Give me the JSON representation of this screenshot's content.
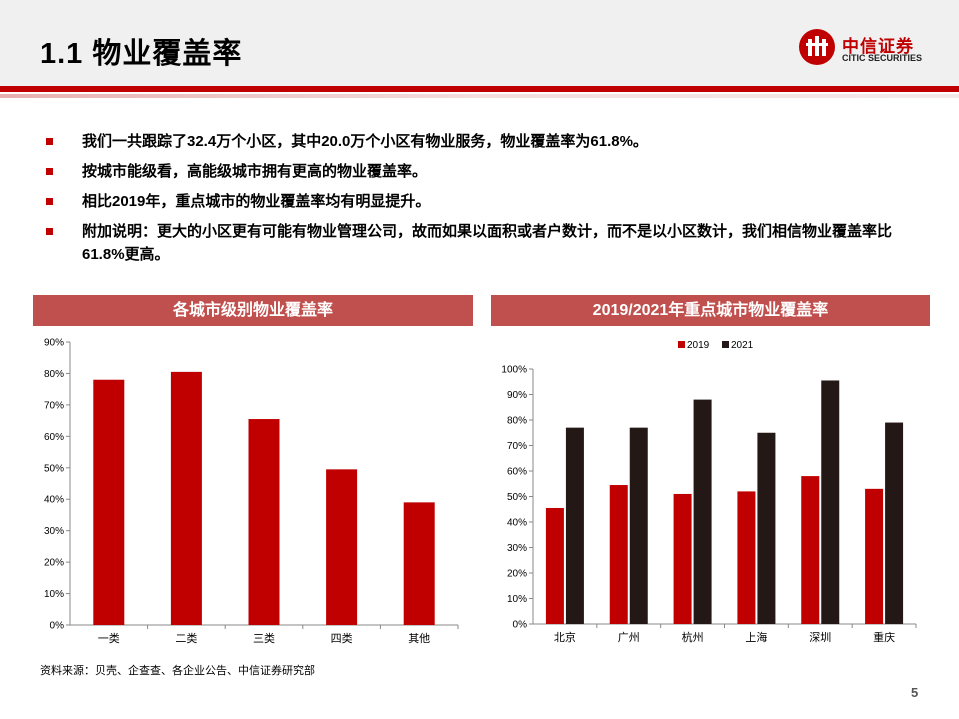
{
  "header": {
    "title": "1.1 物业覆盖率"
  },
  "logo": {
    "cn": "中信证券",
    "en": "CITIC SECURITIES"
  },
  "bullets": [
    "我们一共跟踪了32.4万个小区，其中20.0万个小区有物业服务，物业覆盖率为61.8%。",
    "按城市能级看，高能级城市拥有更高的物业覆盖率。",
    "相比2019年，重点城市的物业覆盖率均有明显提升。",
    "附加说明：更大的小区更有可能有物业管理公司，故而如果以面积或者户数计，而不是以小区数计，我们相信物业覆盖率比61.8%更高。"
  ],
  "colors": {
    "brand_red": "#c00000",
    "panel_header": "#c0504d",
    "bar_2021": "#231815",
    "bar_red": "#c00000"
  },
  "chart_data": [
    {
      "type": "bar",
      "title": "各城市级别物业覆盖率",
      "categories": [
        "一类",
        "二类",
        "三类",
        "四类",
        "其他"
      ],
      "values": [
        78,
        80.5,
        65.5,
        49.5,
        39
      ],
      "ylim": [
        0,
        90
      ],
      "yticks": [
        "0%",
        "10%",
        "20%",
        "30%",
        "40%",
        "50%",
        "60%",
        "70%",
        "80%",
        "90%"
      ],
      "grid": false
    },
    {
      "type": "bar",
      "title": "2019/2021年重点城市物业覆盖率",
      "categories": [
        "北京",
        "广州",
        "杭州",
        "上海",
        "深圳",
        "重庆"
      ],
      "series": [
        {
          "name": "2019",
          "values": [
            45.5,
            54.5,
            51,
            52,
            58,
            53
          ]
        },
        {
          "name": "2021",
          "values": [
            77,
            77,
            88,
            75,
            95.5,
            79
          ]
        }
      ],
      "ylim": [
        0,
        100
      ],
      "yticks": [
        "0%",
        "10%",
        "20%",
        "30%",
        "40%",
        "50%",
        "60%",
        "70%",
        "80%",
        "90%",
        "100%"
      ],
      "legend": "top-left",
      "grid": false
    }
  ],
  "footer": {
    "source": "资料来源：贝壳、企查查、各企业公告、中信证券研究部",
    "page": "5"
  }
}
